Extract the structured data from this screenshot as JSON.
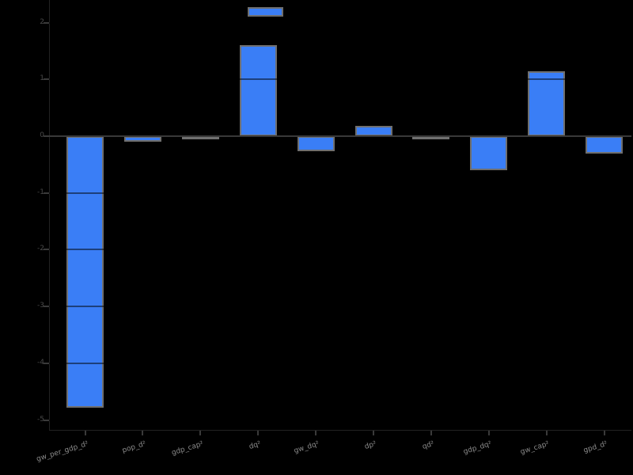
{
  "page": {
    "background": "#000000",
    "title": ""
  },
  "chart_data": {
    "type": "bar",
    "title": "",
    "xlabel": "",
    "ylabel": "",
    "categories": [
      "gw_per_gdp_d²",
      "pop_d²",
      "gdp_cap²",
      "dq²",
      "gw_dq²",
      "dp²",
      "qd²",
      "gdp_dq²",
      "gw_cap²",
      "gpd_d²"
    ],
    "values": [
      -4.78,
      -0.1,
      -0.05,
      1.6,
      -0.27,
      0.18,
      -0.04,
      -0.6,
      1.14,
      -0.31
    ],
    "floating_segment": {
      "category_index": 3,
      "from": 2.11,
      "to": 2.27
    },
    "yticks": [
      2,
      1,
      0,
      -1,
      -2,
      -3,
      -4,
      -5
    ],
    "ylim": [
      -5.4,
      2.4
    ],
    "grid": "dark-overlay-on-bars",
    "legend": "none",
    "bar_color": "#3A7EF6",
    "bar_border_color": "#6F6F6F",
    "background_color": "#000000",
    "zero_line_color": "#383838",
    "ytick_label_color": "#4a4a4a",
    "xtick_label_color": "#8b8b8b",
    "xlabel_rotation_deg": 17
  }
}
